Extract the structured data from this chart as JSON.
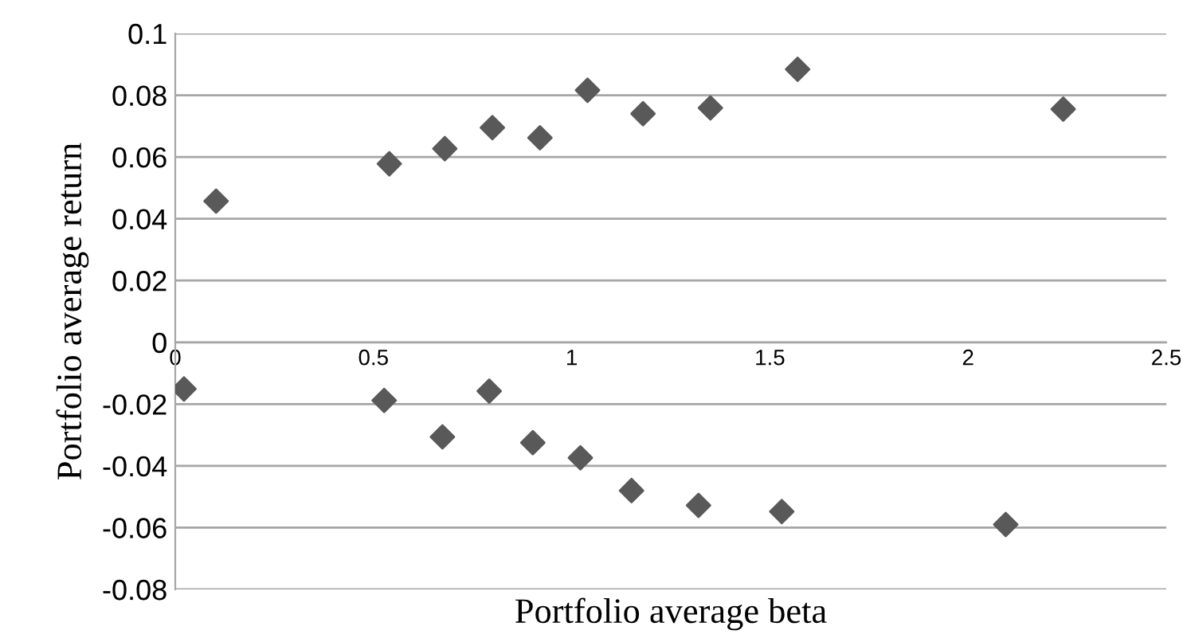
{
  "chart_data": {
    "type": "scatter",
    "xlabel": "Portfolio average beta",
    "ylabel": "Portfolio average return",
    "x": [
      0.103,
      0.54,
      0.68,
      0.8,
      0.92,
      1.04,
      1.18,
      1.35,
      1.57,
      2.24,
      0.022,
      0.527,
      0.674,
      0.792,
      0.902,
      1.022,
      1.151,
      1.32,
      1.53,
      2.095
    ],
    "series": [
      {
        "color": "#595959",
        "values": [
          0.0457,
          0.0578,
          0.0627,
          0.0695,
          0.0662,
          0.0816,
          0.074,
          0.0759,
          0.0884,
          0.0755,
          -0.0151,
          -0.0188,
          -0.0306,
          -0.0158,
          -0.0325,
          -0.0374,
          -0.048,
          -0.0528,
          -0.0548,
          -0.059
        ]
      }
    ],
    "xlim": [
      0,
      2.5
    ],
    "xticks": [
      0,
      0.5,
      1,
      1.5,
      2,
      2.5
    ],
    "ylim": [
      -0.08,
      0.1
    ],
    "yticks": [
      -0.08,
      -0.06,
      -0.04,
      -0.02,
      0,
      0.02,
      0.04,
      0.06,
      0.08,
      0.1
    ],
    "grid": "y",
    "marker": "diamond",
    "legend": false
  }
}
